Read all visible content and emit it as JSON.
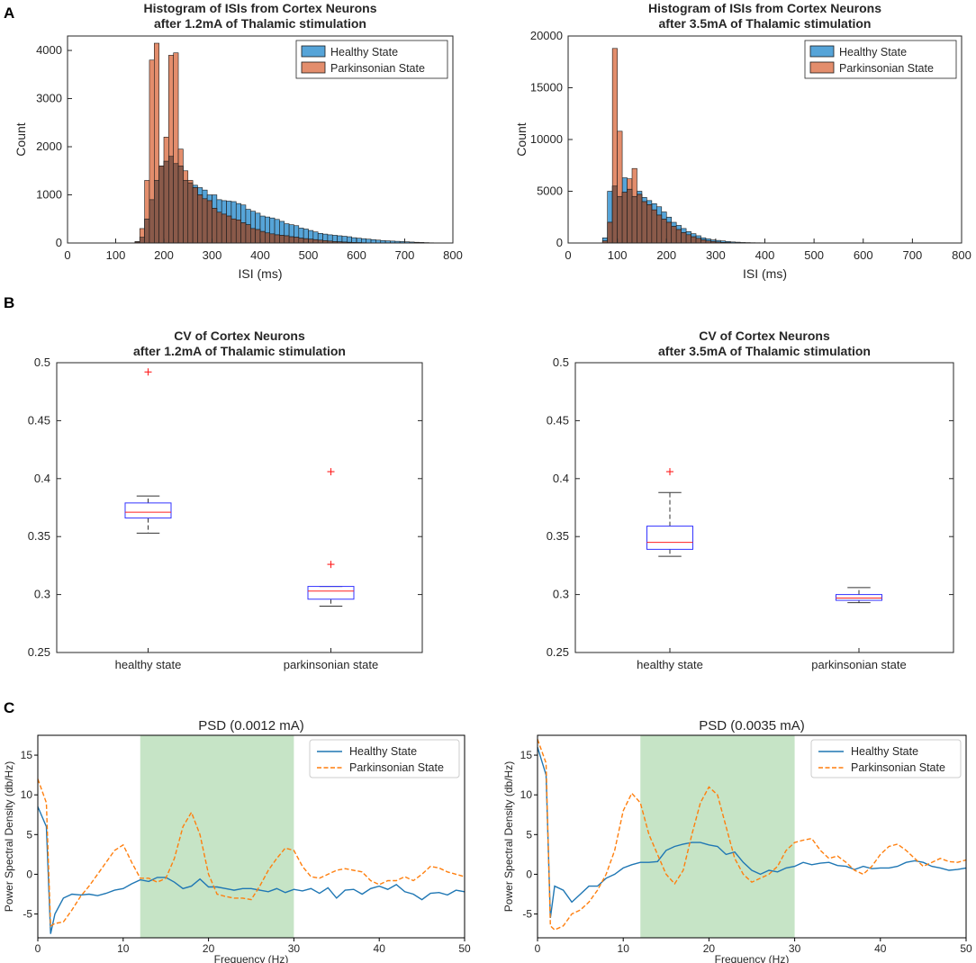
{
  "panel_letters": [
    "A",
    "B",
    "C"
  ],
  "chart_data": [
    {
      "id": "hist1",
      "type": "bar",
      "title": [
        "Histogram of ISIs from Cortex Neurons",
        "after 1.2mA of Thalamic stimulation"
      ],
      "xlabel": "ISI (ms)",
      "ylabel": "Count",
      "xlim": [
        0,
        800
      ],
      "ylim": [
        0,
        4300
      ],
      "xticks": [
        0,
        100,
        200,
        300,
        400,
        500,
        600,
        700,
        800
      ],
      "yticks": [
        0,
        1000,
        2000,
        3000,
        4000
      ],
      "bin_start": 140,
      "bin_width": 10,
      "legend": [
        "Healthy State",
        "Parkinsonian State"
      ],
      "colors": {
        "healthy": "#56a4d8",
        "parkinsonian": "#e38d6c",
        "overlap": "#8a5a4a"
      },
      "series": [
        {
          "name": "Healthy State",
          "values": [
            20,
            120,
            500,
            900,
            1300,
            1600,
            1700,
            1800,
            1650,
            1600,
            1300,
            1250,
            1200,
            1150,
            1100,
            1000,
            1000,
            900,
            880,
            870,
            860,
            820,
            790,
            700,
            660,
            620,
            560,
            540,
            520,
            490,
            450,
            400,
            380,
            360,
            310,
            290,
            260,
            230,
            200,
            185,
            170,
            160,
            150,
            140,
            130,
            110,
            100,
            90,
            80,
            70,
            60,
            50,
            45,
            40,
            35,
            30,
            25,
            20,
            15,
            12,
            8,
            5,
            3,
            2
          ]
        },
        {
          "name": "Parkinsonian State",
          "values": [
            30,
            300,
            1300,
            3800,
            4150,
            1600,
            2200,
            3900,
            3950,
            1950,
            1500,
            1300,
            1150,
            1000,
            920,
            880,
            720,
            640,
            600,
            560,
            500,
            480,
            420,
            380,
            300,
            280,
            240,
            210,
            190,
            170,
            160,
            150,
            130,
            120,
            100,
            90,
            80,
            70,
            60,
            50,
            40,
            30,
            25,
            20,
            15,
            10,
            8,
            5,
            3,
            2
          ]
        }
      ]
    },
    {
      "id": "hist2",
      "type": "bar",
      "title": [
        "Histogram of ISIs from Cortex Neurons",
        "after 3.5mA of Thalamic stimulation"
      ],
      "xlabel": "ISI (ms)",
      "ylabel": "Count",
      "xlim": [
        0,
        800
      ],
      "ylim": [
        0,
        20000
      ],
      "xticks": [
        0,
        100,
        200,
        300,
        400,
        500,
        600,
        700,
        800
      ],
      "yticks": [
        0,
        5000,
        10000,
        15000,
        20000
      ],
      "bin_start": 70,
      "bin_width": 10,
      "legend": [
        "Healthy State",
        "Parkinsonian State"
      ],
      "colors": {
        "healthy": "#56a4d8",
        "parkinsonian": "#e38d6c",
        "overlap": "#8a5a4a"
      },
      "series": [
        {
          "name": "Healthy State",
          "values": [
            500,
            5000,
            5500,
            4500,
            6300,
            5200,
            4500,
            5000,
            4400,
            4100,
            3800,
            3500,
            3000,
            2500,
            2000,
            1700,
            1400,
            1100,
            900,
            700,
            500,
            400,
            300,
            250,
            200,
            150,
            100,
            80,
            50,
            40,
            30,
            25,
            20,
            15,
            10,
            5
          ]
        },
        {
          "name": "Parkinsonian State",
          "values": [
            200,
            2000,
            18800,
            10800,
            4900,
            6200,
            7200,
            4700,
            4000,
            3700,
            3200,
            2700,
            2300,
            2000,
            1600,
            1300,
            1000,
            800,
            600,
            450,
            300,
            200,
            150,
            100,
            60,
            40,
            20,
            10
          ]
        }
      ]
    },
    {
      "id": "box1",
      "type": "box",
      "title": [
        "CV of Cortex Neurons",
        "after 1.2mA of Thalamic stimulation"
      ],
      "categories": [
        "healthy state",
        "parkinsonian state"
      ],
      "ylim": [
        0.25,
        0.5
      ],
      "yticks": [
        "0.25",
        "0.3",
        "0.35",
        "0.4",
        "0.45",
        "0.5"
      ],
      "boxes": [
        {
          "q1": 0.366,
          "median": 0.371,
          "q3": 0.379,
          "whisker_low": 0.353,
          "whisker_high": 0.385,
          "outliers": [
            0.492
          ]
        },
        {
          "q1": 0.296,
          "median": 0.303,
          "q3": 0.307,
          "whisker_low": 0.29,
          "whisker_high": 0.307,
          "outliers": [
            0.326,
            0.406
          ]
        }
      ]
    },
    {
      "id": "box2",
      "type": "box",
      "title": [
        "CV of Cortex Neurons",
        "after 3.5mA of Thalamic stimulation"
      ],
      "categories": [
        "healthy state",
        "parkinsonian state"
      ],
      "ylim": [
        0.25,
        0.5
      ],
      "yticks": [
        "0.25",
        "0.3",
        "0.35",
        "0.4",
        "0.45",
        "0.5"
      ],
      "boxes": [
        {
          "q1": 0.339,
          "median": 0.345,
          "q3": 0.359,
          "whisker_low": 0.333,
          "whisker_high": 0.388,
          "outliers": [
            0.406
          ]
        },
        {
          "q1": 0.295,
          "median": 0.297,
          "q3": 0.3,
          "whisker_low": 0.293,
          "whisker_high": 0.306,
          "outliers": []
        }
      ]
    },
    {
      "id": "psd1",
      "type": "line",
      "title": "PSD (0.0012 mA)",
      "xlabel": "Frequency (Hz)",
      "ylabel": "Power Spectral Density (db/Hz)",
      "xlim": [
        0,
        50
      ],
      "ylim": [
        -8,
        17.5
      ],
      "xticks": [
        0,
        10,
        20,
        30,
        40,
        50
      ],
      "yticks": [
        -5,
        0,
        5,
        10,
        15
      ],
      "shaded_band": [
        12,
        30
      ],
      "series": [
        {
          "name": "Healthy State",
          "style": "solid",
          "color": "#1f77b4",
          "x": [
            0,
            1,
            1.5,
            2,
            3,
            4,
            5,
            6,
            7,
            8,
            9,
            10,
            11,
            12,
            13,
            14,
            15,
            16,
            17,
            18,
            19,
            20,
            21,
            22,
            23,
            24,
            25,
            26,
            27,
            28,
            29,
            30,
            31,
            32,
            33,
            34,
            35,
            36,
            37,
            38,
            39,
            40,
            41,
            42,
            43,
            44,
            45,
            46,
            47,
            48,
            49,
            50
          ],
          "y": [
            8.5,
            6,
            -7.5,
            -5,
            -3,
            -2.5,
            -2.6,
            -2.5,
            -2.7,
            -2.4,
            -2,
            -1.8,
            -1.2,
            -0.7,
            -0.9,
            -0.4,
            -0.4,
            -1,
            -1.8,
            -1.5,
            -0.6,
            -1.6,
            -1.6,
            -1.8,
            -2,
            -1.8,
            -1.8,
            -2,
            -2.2,
            -1.8,
            -2.3,
            -1.9,
            -2.1,
            -1.8,
            -2.4,
            -1.7,
            -3,
            -2,
            -1.9,
            -2.5,
            -1.8,
            -1.5,
            -1.9,
            -1.3,
            -2.2,
            -2.5,
            -3.2,
            -2.4,
            -2.3,
            -2.6,
            -2,
            -2.2
          ]
        },
        {
          "name": "Parkinsonian State",
          "style": "dashed",
          "color": "#ff7f0e",
          "x": [
            0,
            1,
            1.5,
            2,
            3,
            4,
            5,
            6,
            7,
            8,
            9,
            10,
            11,
            12,
            13,
            14,
            15,
            16,
            17,
            18,
            19,
            20,
            21,
            22,
            23,
            24,
            25,
            26,
            27,
            28,
            29,
            30,
            31,
            32,
            33,
            34,
            35,
            36,
            37,
            38,
            39,
            40,
            41,
            42,
            43,
            44,
            45,
            46,
            47,
            48,
            49,
            50
          ],
          "y": [
            12,
            9,
            -6.5,
            -6.2,
            -6,
            -4.5,
            -2.8,
            -1.5,
            0,
            1.5,
            3,
            3.7,
            1.5,
            -0.5,
            -0.5,
            -1,
            -0.5,
            2,
            6,
            7.8,
            5,
            0,
            -2.5,
            -2.8,
            -3,
            -3,
            -3.2,
            -1.5,
            0.5,
            2,
            3.3,
            3,
            1,
            -0.3,
            -0.5,
            0,
            0.5,
            0.7,
            0.5,
            0.3,
            -0.8,
            -1.3,
            -0.8,
            -0.8,
            -0.3,
            -0.8,
            0,
            1,
            0.8,
            0.3,
            0,
            -0.3
          ]
        }
      ],
      "legend": [
        "Healthy State",
        "Parkinsonian State"
      ]
    },
    {
      "id": "psd2",
      "type": "line",
      "title": "PSD (0.0035 mA)",
      "xlabel": "Frequency (Hz)",
      "ylabel": "Power Spectral Density (db/Hz)",
      "xlim": [
        0,
        50
      ],
      "ylim": [
        -8,
        17.5
      ],
      "xticks": [
        0,
        10,
        20,
        30,
        40,
        50
      ],
      "yticks": [
        -5,
        0,
        5,
        10,
        15
      ],
      "shaded_band": [
        12,
        30
      ],
      "series": [
        {
          "name": "Healthy State",
          "style": "solid",
          "color": "#1f77b4",
          "x": [
            0,
            1,
            1.5,
            2,
            3,
            4,
            5,
            6,
            7,
            8,
            9,
            10,
            11,
            12,
            13,
            14,
            15,
            16,
            17,
            18,
            19,
            20,
            21,
            22,
            23,
            24,
            25,
            26,
            27,
            28,
            29,
            30,
            31,
            32,
            33,
            34,
            35,
            36,
            37,
            38,
            39,
            40,
            41,
            42,
            43,
            44,
            45,
            46,
            47,
            48,
            49,
            50
          ],
          "y": [
            16,
            12.5,
            -5.5,
            -1.5,
            -2,
            -3.5,
            -2.5,
            -1.5,
            -1.5,
            -0.5,
            0,
            0.8,
            1.2,
            1.5,
            1.5,
            1.6,
            3,
            3.5,
            3.8,
            4,
            4,
            3.7,
            3.5,
            2.5,
            2.8,
            1.5,
            0.5,
            0,
            0.5,
            0.3,
            0.8,
            1,
            1.5,
            1.2,
            1.4,
            1.5,
            1.1,
            1,
            0.6,
            1,
            0.7,
            0.8,
            0.8,
            1,
            1.5,
            1.7,
            1.5,
            1,
            0.8,
            0.5,
            0.6,
            0.8
          ]
        },
        {
          "name": "Parkinsonian State",
          "style": "dashed",
          "color": "#ff7f0e",
          "x": [
            0,
            1,
            1.5,
            2,
            3,
            4,
            5,
            6,
            7,
            8,
            9,
            10,
            11,
            12,
            13,
            14,
            15,
            16,
            17,
            18,
            19,
            20,
            21,
            22,
            23,
            24,
            25,
            26,
            27,
            28,
            29,
            30,
            31,
            32,
            33,
            34,
            35,
            36,
            37,
            38,
            39,
            40,
            41,
            42,
            43,
            44,
            45,
            46,
            47,
            48,
            49,
            50
          ],
          "y": [
            17,
            14,
            -6.5,
            -7,
            -6.5,
            -5,
            -4.5,
            -3.5,
            -2,
            0,
            3,
            8,
            10.2,
            9,
            5,
            2.5,
            0,
            -1.2,
            0.5,
            5,
            9,
            11,
            10,
            6,
            2,
            0,
            -1,
            -0.5,
            0,
            1,
            3,
            4,
            4.3,
            4.5,
            3,
            2,
            2.3,
            1.5,
            0.5,
            0,
            1,
            2.5,
            3.5,
            3.8,
            3,
            2,
            1,
            1.5,
            2,
            1.6,
            1.5,
            1.8
          ]
        }
      ],
      "legend": [
        "Healthy State",
        "Parkinsonian State"
      ]
    }
  ]
}
